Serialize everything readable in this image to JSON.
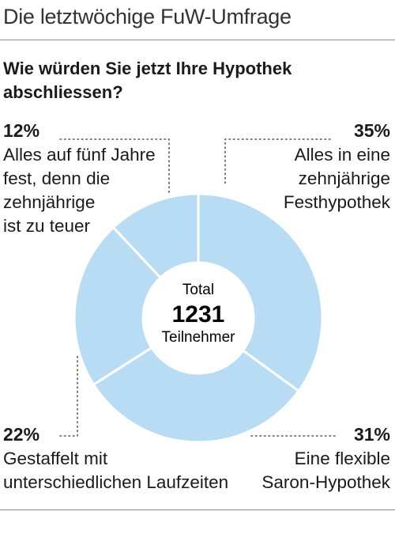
{
  "header": {
    "title": "Die letztwöchige FuW-Umfrage"
  },
  "question": "Wie würden Sie jetzt Ihre Hypothek abschliessen?",
  "colors": {
    "slice_fill": "#b8dcf4",
    "slice_border": "#ffffff",
    "leader": "#555555"
  },
  "chart_data": {
    "type": "pie",
    "variant": "donut",
    "center": {
      "line1": "Total",
      "line2": "1231",
      "line3": "Teilnehmer"
    },
    "slices": [
      {
        "pct_label": "35%",
        "value": 35,
        "label": "Alles in eine\nzehnjährige\nFesthypothek"
      },
      {
        "pct_label": "31%",
        "value": 31,
        "label": "Eine flexible\nSaron-Hypothek"
      },
      {
        "pct_label": "22%",
        "value": 22,
        "label": "Gestaffelt mit\nunterschiedlichen Laufzeiten"
      },
      {
        "pct_label": "12%",
        "value": 12,
        "label": "Alles auf fünf Jahre\nfest, denn die\nzehnjährige\nist zu teuer"
      }
    ]
  }
}
